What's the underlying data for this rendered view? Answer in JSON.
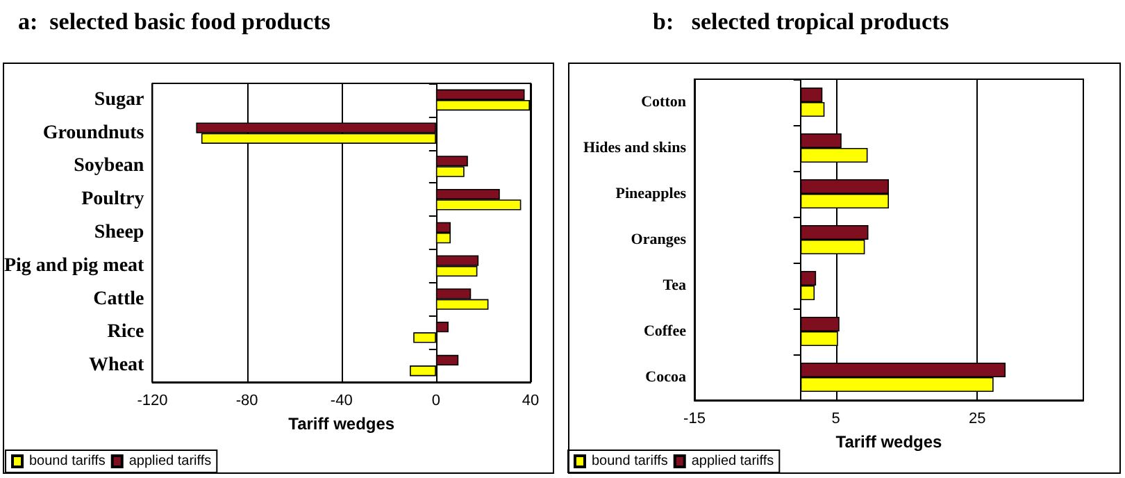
{
  "chart_data": [
    {
      "type": "bar",
      "orientation": "horizontal",
      "title": "a:  selected basic food products",
      "xlabel": "Tariff wedges",
      "categories": [
        "Sugar",
        "Groundnuts",
        "Soybean",
        "Poultry",
        "Sheep",
        "Pig and pig meat",
        "Cattle",
        "Rice",
        "Wheat"
      ],
      "series": [
        {
          "name": "bound tariffs",
          "color": "#ffff00",
          "values": [
            39.7,
            -99.3,
            12,
            36,
            6.2,
            17.5,
            22.2,
            -9.6,
            -11.1
          ]
        },
        {
          "name": "applied tariffs",
          "color": "#7f0f1f",
          "values": [
            37.5,
            -101.5,
            13.5,
            27,
            6.2,
            18,
            14.8,
            5.3,
            9.5
          ]
        }
      ],
      "xlim": [
        -120,
        40
      ],
      "xticks": [
        -120,
        -80,
        -40,
        0,
        40
      ],
      "grid": "x",
      "legend": "bottom left"
    },
    {
      "type": "bar",
      "orientation": "horizontal",
      "title": "b:   selected tropical products",
      "xlabel": "Tariff wedges",
      "categories": [
        "Cotton",
        "Hides and skins",
        "Pineapples",
        "Oranges",
        "Tea",
        "Coffee",
        "Cocoa"
      ],
      "series": [
        {
          "name": "bound tariffs",
          "color": "#ffff00",
          "values": [
            3.4,
            9.5,
            12.5,
            9.1,
            2,
            5.3,
            27.3
          ]
        },
        {
          "name": "applied tariffs",
          "color": "#7f0f1f",
          "values": [
            3.1,
            5.8,
            12.5,
            9.6,
            2.2,
            5.5,
            29
          ]
        }
      ],
      "xlim": [
        -15,
        40
      ],
      "xticks": [
        -15,
        5,
        25
      ],
      "grid": "x",
      "legend": "bottom left"
    }
  ]
}
